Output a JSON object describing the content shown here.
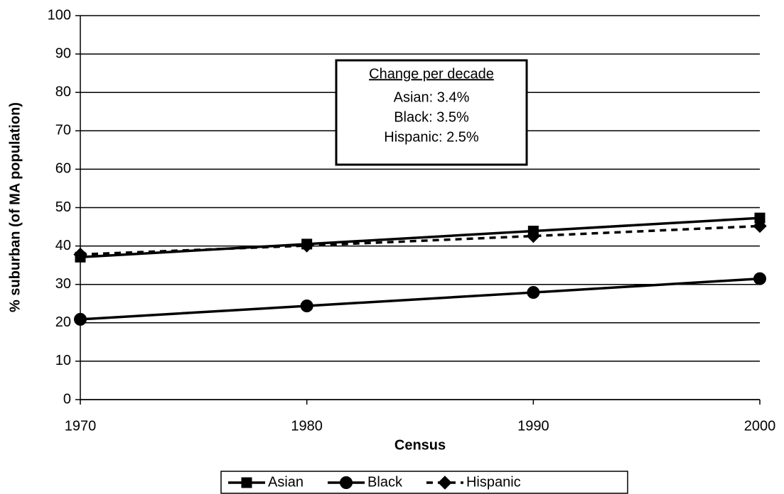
{
  "chart_data": {
    "type": "line",
    "x": [
      1970,
      1980,
      1990,
      2000
    ],
    "xlim": [
      1970,
      2000
    ],
    "xticks": [
      1970,
      1980,
      1990,
      2000
    ],
    "ylim": [
      0,
      100
    ],
    "yticks": [
      0,
      10,
      20,
      30,
      40,
      50,
      60,
      70,
      80,
      90,
      100
    ],
    "xlabel": "Census",
    "ylabel": "% suburban (of  MA population)",
    "grid": true,
    "legend": "bottom",
    "annotation": {
      "title": "Change per decade",
      "lines": [
        "Asian: 3.4%",
        "Black: 3.5%",
        "Hispanic: 2.5%"
      ]
    },
    "series": [
      {
        "name": "Asian",
        "color": "#000000",
        "marker": "square",
        "dash": false,
        "values": [
          37.1,
          40.5,
          43.9,
          47.3
        ]
      },
      {
        "name": "Black",
        "color": "#000000",
        "marker": "circle",
        "dash": false,
        "values": [
          20.9,
          24.4,
          27.9,
          31.5
        ]
      },
      {
        "name": "Hispanic",
        "color": "#000000",
        "marker": "diamond",
        "dash": true,
        "values": [
          37.8,
          40.1,
          42.6,
          45.2
        ]
      }
    ]
  }
}
